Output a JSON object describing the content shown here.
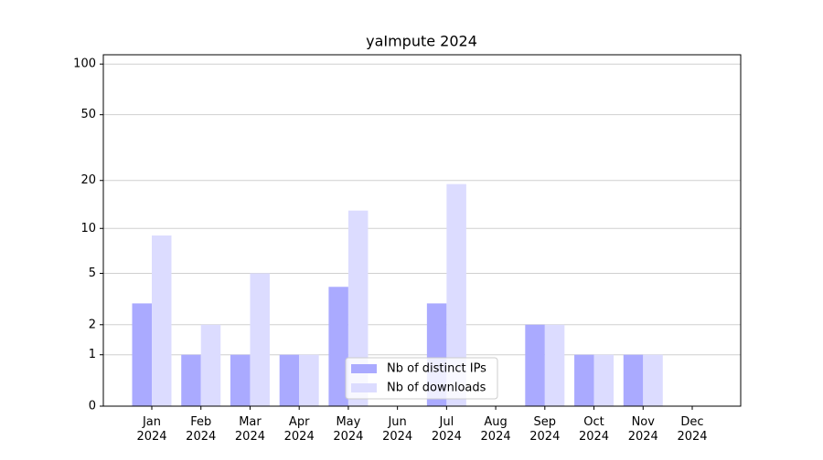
{
  "chart_data": {
    "type": "bar",
    "title": "yaImpute 2024",
    "categories": [
      "Jan 2024",
      "Feb 2024",
      "Mar 2024",
      "Apr 2024",
      "May 2024",
      "Jun 2024",
      "Jul 2024",
      "Aug 2024",
      "Sep 2024",
      "Oct 2024",
      "Nov 2024",
      "Dec 2024"
    ],
    "series": [
      {
        "name": "Nb of distinct IPs",
        "color": "#aaaaff",
        "values": [
          3,
          1,
          1,
          1,
          4,
          0,
          3,
          0,
          2,
          1,
          1,
          0
        ]
      },
      {
        "name": "Nb of downloads",
        "color": "#dcdcff",
        "values": [
          9,
          2,
          5,
          1,
          13,
          0,
          19,
          0,
          2,
          1,
          1,
          0
        ]
      }
    ],
    "yscale": "log1p",
    "ylim": [
      0,
      113.5
    ],
    "yticks": [
      0,
      1,
      2,
      5,
      10,
      20,
      50,
      100
    ],
    "grid": true,
    "legend": "lower center"
  }
}
